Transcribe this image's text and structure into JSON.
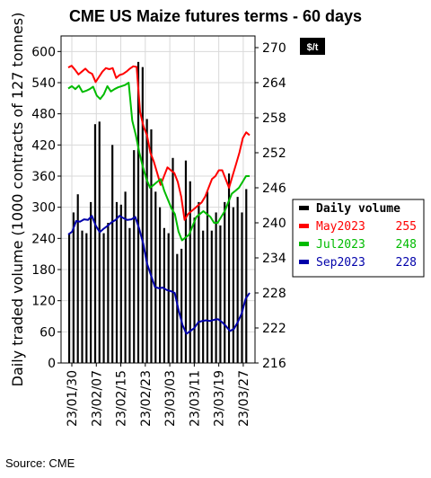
{
  "chart_data": {
    "type": "bar+line",
    "title": "CME US Maize futures terms - 60 days",
    "source": "Source: CME",
    "left_axis": {
      "label": "Daily traded volume (1000 contracts of 127 tonnes)",
      "ylim": [
        0,
        630
      ],
      "ticks": [
        0,
        60,
        120,
        180,
        240,
        300,
        360,
        420,
        480,
        540,
        600
      ]
    },
    "right_axis": {
      "unit": "$/t",
      "ylim": [
        216,
        272
      ],
      "ticks": [
        216,
        222,
        228,
        234,
        240,
        246,
        252,
        258,
        264,
        270
      ]
    },
    "x_tick_labels": [
      "23/01/30",
      "23/02/07",
      "23/02/15",
      "23/02/23",
      "23/03/03",
      "23/03/11",
      "23/03/19",
      "23/03/27"
    ],
    "x_tick_index": [
      0,
      6,
      12,
      18,
      24,
      30,
      36,
      42
    ],
    "legend_entries": [
      {
        "label": "Daily volume",
        "value": "",
        "color": "#000000"
      },
      {
        "label": "May2023",
        "value": "255",
        "color": "#ff0000"
      },
      {
        "label": "Jul2023",
        "value": "248",
        "color": "#00bb00"
      },
      {
        "label": "Sep2023",
        "value": "228",
        "color": "#0000aa"
      }
    ],
    "volume": [
      250,
      290,
      325,
      255,
      250,
      310,
      460,
      465,
      250,
      270,
      420,
      310,
      305,
      330,
      260,
      410,
      580,
      570,
      470,
      450,
      330,
      300,
      260,
      250,
      395,
      210,
      220,
      390,
      350,
      280,
      310,
      255,
      330,
      255,
      290,
      265,
      310,
      365,
      300,
      320,
      290,
      335
    ],
    "series": [
      {
        "name": "May2023",
        "color": "#ff0000",
        "values": [
          266.6,
          266.9,
          266.2,
          265.4,
          265.9,
          266.4,
          265.8,
          265.5,
          264.1,
          265.0,
          265.9,
          266.5,
          266.3,
          266.5,
          264.8,
          265.3,
          265.5,
          265.9,
          266.4,
          266.8,
          266.7,
          259.0,
          256.5,
          255.0,
          252.0,
          250.5,
          248.5,
          246.5,
          248.0,
          249.5,
          249.0,
          248.5,
          247.0,
          244.5,
          240.5,
          241.5,
          242.0,
          242.5,
          243.0,
          243.5,
          244.5,
          246.0,
          247.5,
          248.0,
          249.0,
          249.0,
          247.5,
          246.0,
          248.0,
          250.0,
          252.0,
          254.5,
          255.5,
          255.0
        ]
      },
      {
        "name": "Jul2023",
        "color": "#00bb00",
        "values": [
          263.0,
          263.4,
          262.9,
          263.5,
          262.4,
          262.6,
          262.9,
          263.3,
          261.8,
          261.2,
          262.0,
          263.4,
          262.5,
          262.9,
          263.2,
          263.4,
          263.6,
          264.0,
          257.5,
          255.0,
          252.0,
          249.5,
          247.5,
          246.0,
          246.5,
          247.0,
          247.5,
          245.5,
          244.0,
          242.5,
          241.5,
          238.5,
          237.0,
          237.5,
          238.0,
          239.5,
          241.0,
          241.5,
          242.0,
          241.5,
          241.0,
          240.0,
          240.0,
          241.0,
          242.0,
          243.5,
          245.0,
          245.5,
          246.0,
          247.0,
          248.0,
          248.0
        ]
      },
      {
        "name": "Sep2023",
        "color": "#0000aa",
        "values": [
          238.0,
          238.5,
          240.3,
          240.2,
          240.6,
          240.5,
          241.2,
          239.5,
          238.4,
          239.0,
          239.5,
          240.1,
          240.5,
          241.2,
          240.8,
          240.5,
          240.6,
          241.0,
          239.0,
          236.5,
          233.0,
          231.0,
          229.0,
          228.8,
          228.9,
          228.5,
          228.3,
          228.0,
          225.0,
          222.5,
          221.0,
          221.5,
          222.0,
          223.0,
          223.2,
          223.3,
          223.2,
          223.4,
          223.5,
          223.0,
          222.3,
          221.5,
          221.8,
          223.0,
          224.5,
          227.0,
          228.0
        ]
      }
    ]
  }
}
